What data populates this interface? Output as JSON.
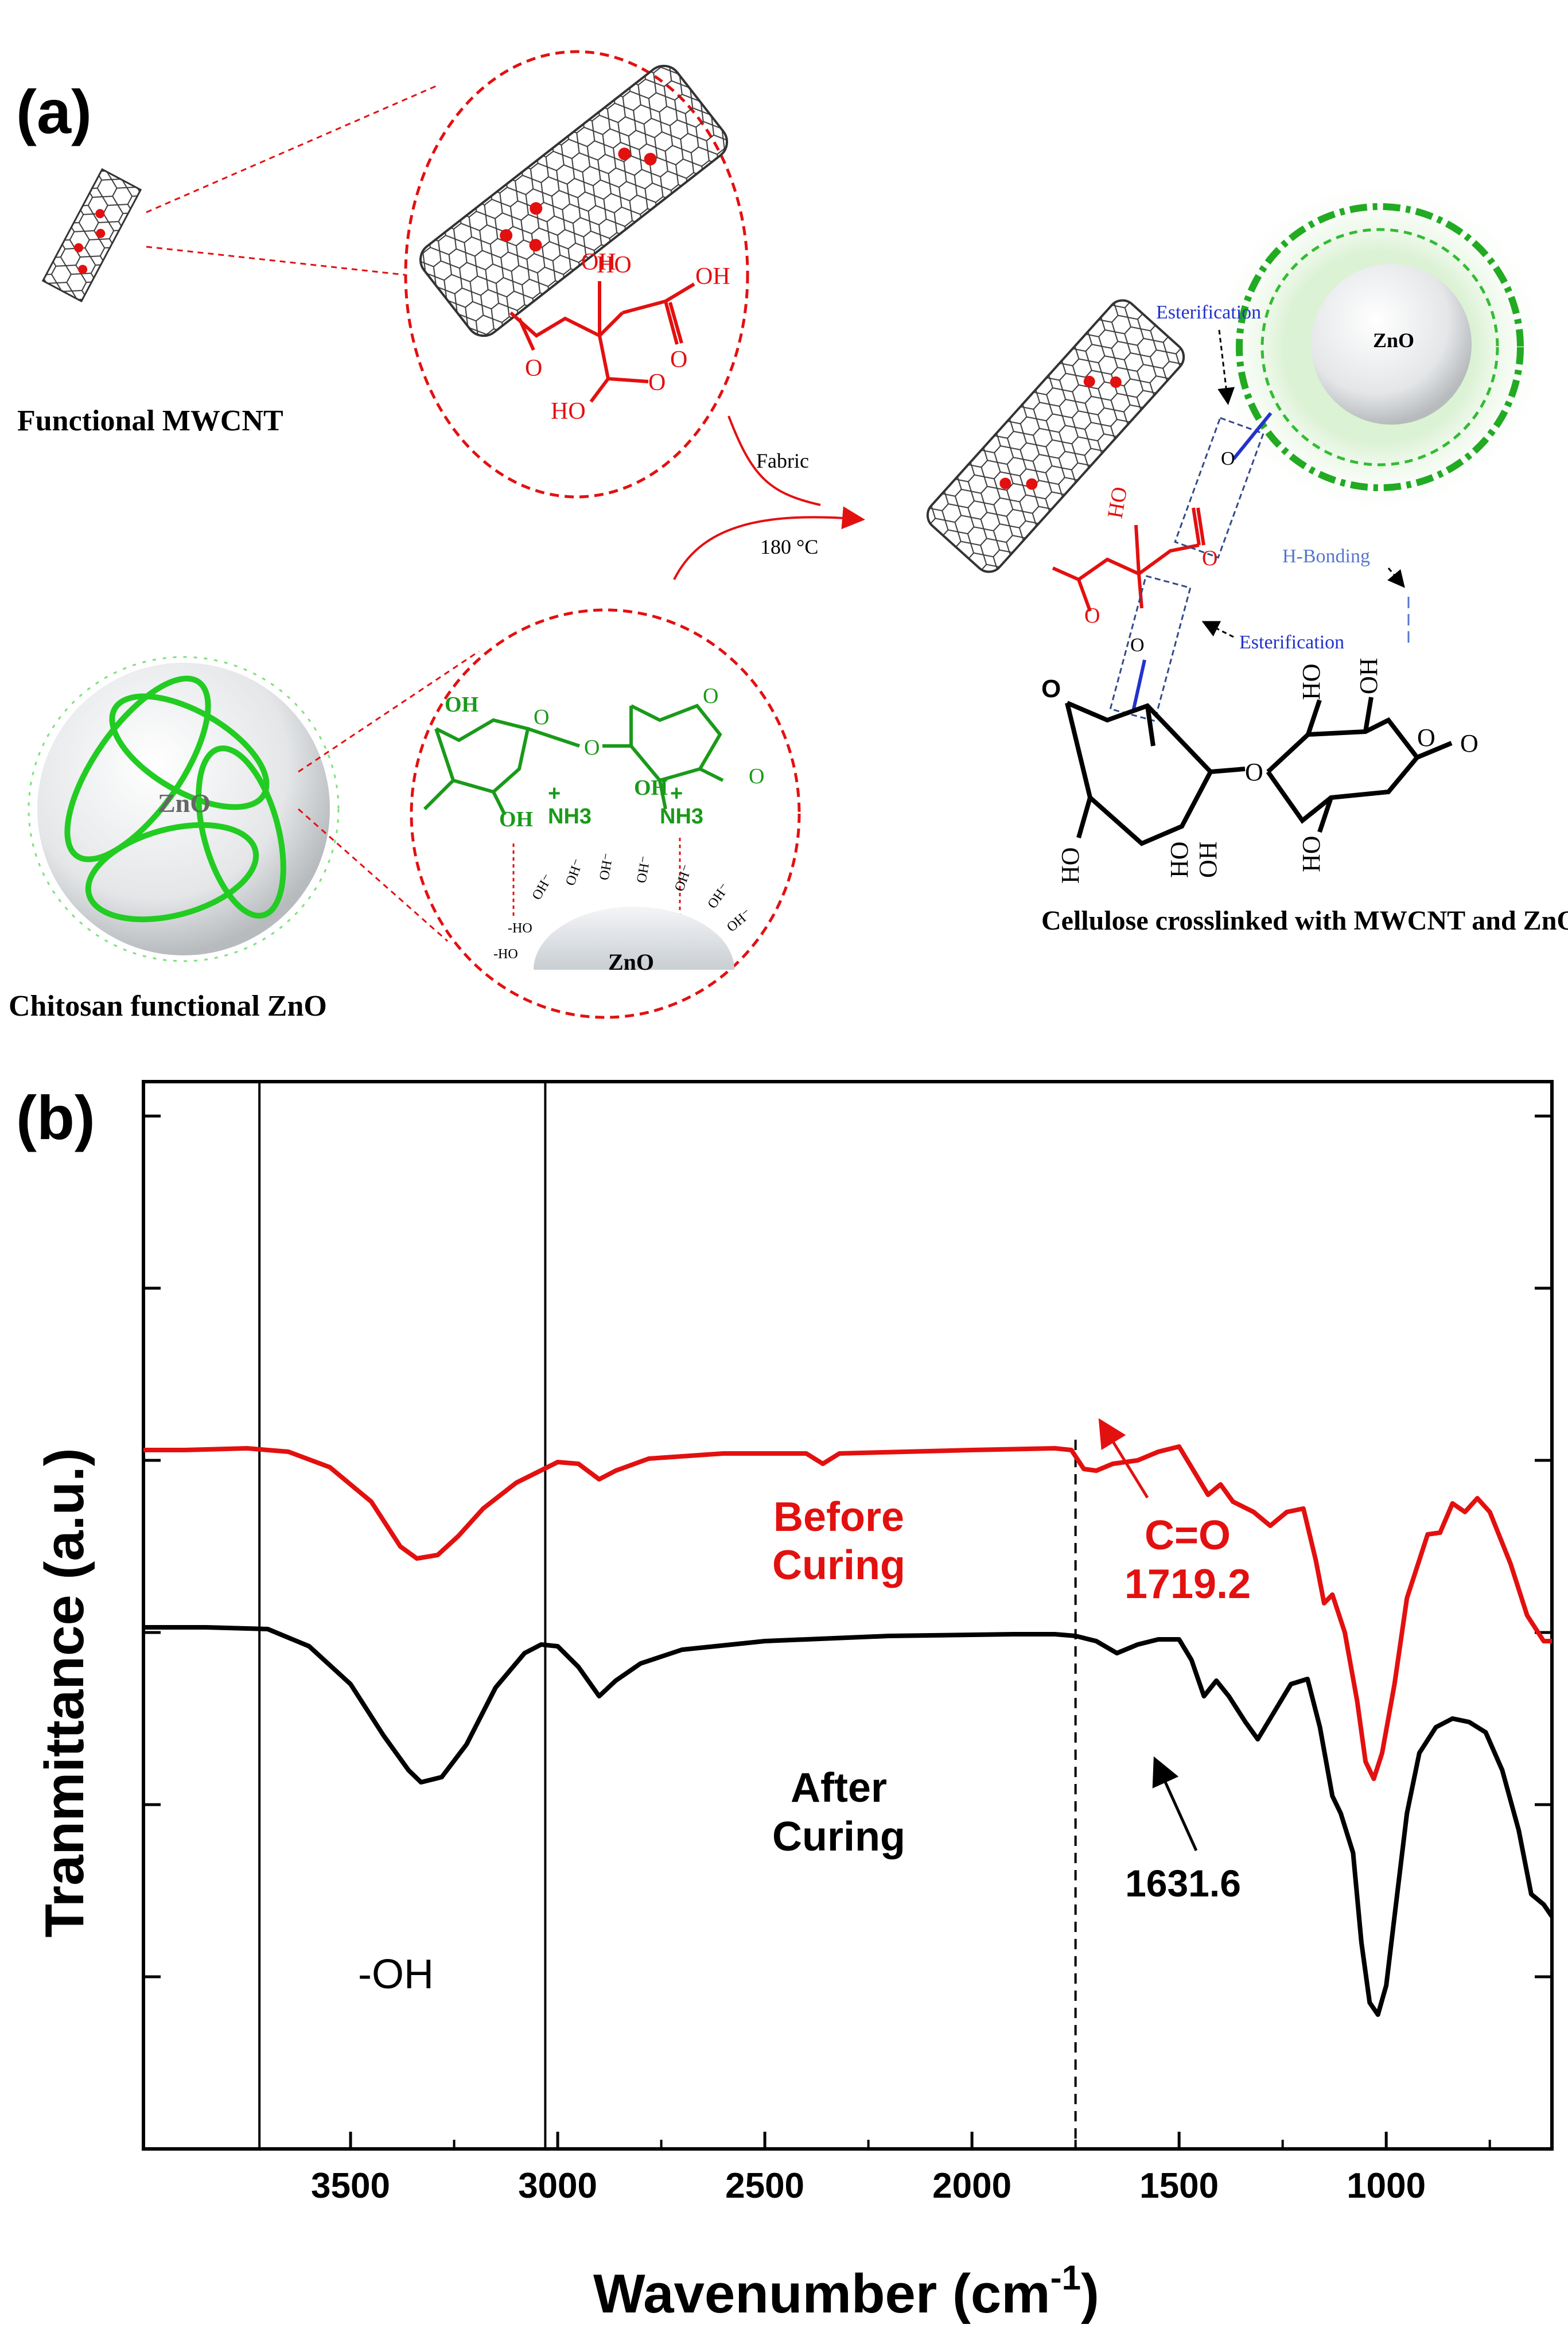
{
  "panel_a": {
    "label": "(a)",
    "mwcnt_caption": "Functional MWCNT",
    "chitosan_caption": "Chitosan functional ZnO",
    "zno_label": "ZnO",
    "arrow_text_1": "Fabric",
    "arrow_text_2": "180 °C",
    "product_caption": "Cellulose crosslinked with MWCNT and ZnO",
    "esterification_1": "Esterification",
    "esterification_2": "Esterification",
    "h_bonding": "H-Bonding",
    "chem": {
      "oh": "OH",
      "ho": "HO",
      "o": "O",
      "nh3": "NH3",
      "nh3_plus": "+",
      "hydroxide": "OH⁻",
      "ho_minus": "-HO",
      "minus_ho": "-HO"
    }
  },
  "panel_b": {
    "label": "(b)",
    "before_1": "Before",
    "before_2": "Curing",
    "after_1": "After",
    "after_2": "Curing",
    "co_1": "C=O",
    "co_2": "1719.2",
    "peak_label": "1631.6",
    "oh_label": "-OH",
    "colors": {
      "before": "#e31010",
      "after": "#000000",
      "green": "#22b422"
    }
  },
  "chart_data": {
    "type": "line",
    "xlabel": "Wavenumber (cm",
    "xlabel_sup": "-1",
    "xlabel_close": ")",
    "ylabel": "Tranmittance (a.u.)",
    "xlim": [
      4000,
      600
    ],
    "xticks": [
      "3500",
      "3000",
      "2500",
      "2000",
      "1500",
      "1000"
    ],
    "ylim": [
      0,
      6.2
    ],
    "reference_lines": [
      3720,
      3030
    ],
    "dashed_line": 1750,
    "series": [
      {
        "name": "Before Curing",
        "color": "#e31010",
        "points": [
          [
            4000,
            4.06
          ],
          [
            3900,
            4.06
          ],
          [
            3750,
            4.07
          ],
          [
            3650,
            4.05
          ],
          [
            3550,
            3.96
          ],
          [
            3450,
            3.76
          ],
          [
            3380,
            3.5
          ],
          [
            3340,
            3.43
          ],
          [
            3290,
            3.45
          ],
          [
            3240,
            3.56
          ],
          [
            3180,
            3.72
          ],
          [
            3100,
            3.87
          ],
          [
            3000,
            3.99
          ],
          [
            2950,
            3.98
          ],
          [
            2900,
            3.89
          ],
          [
            2860,
            3.94
          ],
          [
            2780,
            4.01
          ],
          [
            2600,
            4.04
          ],
          [
            2400,
            4.04
          ],
          [
            2360,
            3.98
          ],
          [
            2320,
            4.04
          ],
          [
            2000,
            4.06
          ],
          [
            1800,
            4.07
          ],
          [
            1760,
            4.06
          ],
          [
            1730,
            3.95
          ],
          [
            1700,
            3.94
          ],
          [
            1660,
            3.98
          ],
          [
            1600,
            4.0
          ],
          [
            1550,
            4.05
          ],
          [
            1500,
            4.08
          ],
          [
            1470,
            3.96
          ],
          [
            1430,
            3.8
          ],
          [
            1400,
            3.86
          ],
          [
            1370,
            3.76
          ],
          [
            1320,
            3.7
          ],
          [
            1280,
            3.62
          ],
          [
            1240,
            3.7
          ],
          [
            1200,
            3.72
          ],
          [
            1170,
            3.42
          ],
          [
            1150,
            3.17
          ],
          [
            1130,
            3.22
          ],
          [
            1100,
            3.0
          ],
          [
            1070,
            2.6
          ],
          [
            1050,
            2.25
          ],
          [
            1030,
            2.15
          ],
          [
            1010,
            2.3
          ],
          [
            980,
            2.7
          ],
          [
            950,
            3.2
          ],
          [
            900,
            3.57
          ],
          [
            870,
            3.58
          ],
          [
            840,
            3.75
          ],
          [
            810,
            3.7
          ],
          [
            780,
            3.78
          ],
          [
            750,
            3.7
          ],
          [
            700,
            3.4
          ],
          [
            660,
            3.1
          ],
          [
            620,
            2.95
          ],
          [
            600,
            2.95
          ]
        ]
      },
      {
        "name": "After Curing",
        "color": "#000000",
        "points": [
          [
            4000,
            3.03
          ],
          [
            3850,
            3.03
          ],
          [
            3700,
            3.02
          ],
          [
            3600,
            2.92
          ],
          [
            3500,
            2.7
          ],
          [
            3420,
            2.4
          ],
          [
            3360,
            2.2
          ],
          [
            3330,
            2.13
          ],
          [
            3280,
            2.16
          ],
          [
            3220,
            2.35
          ],
          [
            3150,
            2.68
          ],
          [
            3080,
            2.88
          ],
          [
            3040,
            2.93
          ],
          [
            3000,
            2.92
          ],
          [
            2950,
            2.8
          ],
          [
            2900,
            2.63
          ],
          [
            2860,
            2.72
          ],
          [
            2800,
            2.82
          ],
          [
            2700,
            2.9
          ],
          [
            2500,
            2.95
          ],
          [
            2200,
            2.98
          ],
          [
            1900,
            2.99
          ],
          [
            1800,
            2.99
          ],
          [
            1750,
            2.98
          ],
          [
            1700,
            2.95
          ],
          [
            1650,
            2.88
          ],
          [
            1600,
            2.93
          ],
          [
            1550,
            2.96
          ],
          [
            1500,
            2.96
          ],
          [
            1470,
            2.84
          ],
          [
            1440,
            2.63
          ],
          [
            1410,
            2.72
          ],
          [
            1380,
            2.63
          ],
          [
            1340,
            2.48
          ],
          [
            1310,
            2.38
          ],
          [
            1260,
            2.58
          ],
          [
            1230,
            2.7
          ],
          [
            1190,
            2.73
          ],
          [
            1160,
            2.45
          ],
          [
            1130,
            2.05
          ],
          [
            1110,
            1.95
          ],
          [
            1080,
            1.72
          ],
          [
            1060,
            1.2
          ],
          [
            1040,
            0.85
          ],
          [
            1020,
            0.78
          ],
          [
            1000,
            0.95
          ],
          [
            975,
            1.45
          ],
          [
            950,
            1.95
          ],
          [
            920,
            2.3
          ],
          [
            880,
            2.45
          ],
          [
            840,
            2.5
          ],
          [
            800,
            2.48
          ],
          [
            760,
            2.42
          ],
          [
            720,
            2.2
          ],
          [
            680,
            1.85
          ],
          [
            650,
            1.48
          ],
          [
            620,
            1.42
          ],
          [
            600,
            1.35
          ]
        ]
      }
    ]
  }
}
